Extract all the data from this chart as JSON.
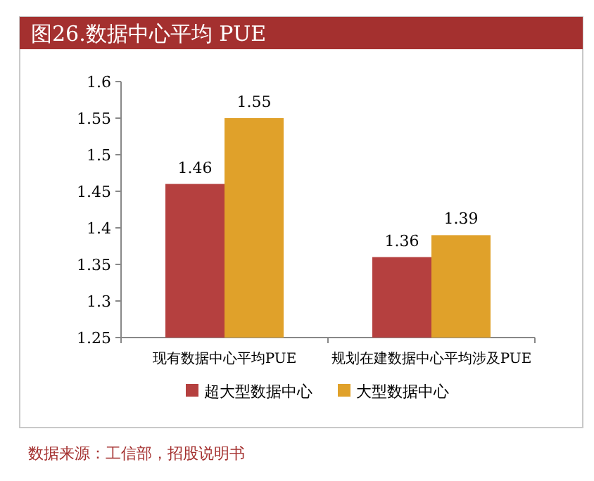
{
  "chart_data": {
    "type": "bar",
    "title": "图26.数据中心平均 PUE",
    "categories": [
      "现有数据中心平均PUE",
      "规划在建数据中心平均涉及PUE"
    ],
    "series": [
      {
        "name": "超大型数据中心",
        "color": "#b5403f",
        "values": [
          1.46,
          1.36
        ]
      },
      {
        "name": "大型数据中心",
        "color": "#e0a12a",
        "values": [
          1.55,
          1.39
        ]
      }
    ],
    "ylim": [
      1.25,
      1.6
    ],
    "yticks": [
      1.25,
      1.3,
      1.35,
      1.4,
      1.45,
      1.5,
      1.55,
      1.6
    ],
    "data_labels": true,
    "legend": "bottom",
    "annotations": [
      "数据来源：工信部，招股说明书"
    ]
  }
}
